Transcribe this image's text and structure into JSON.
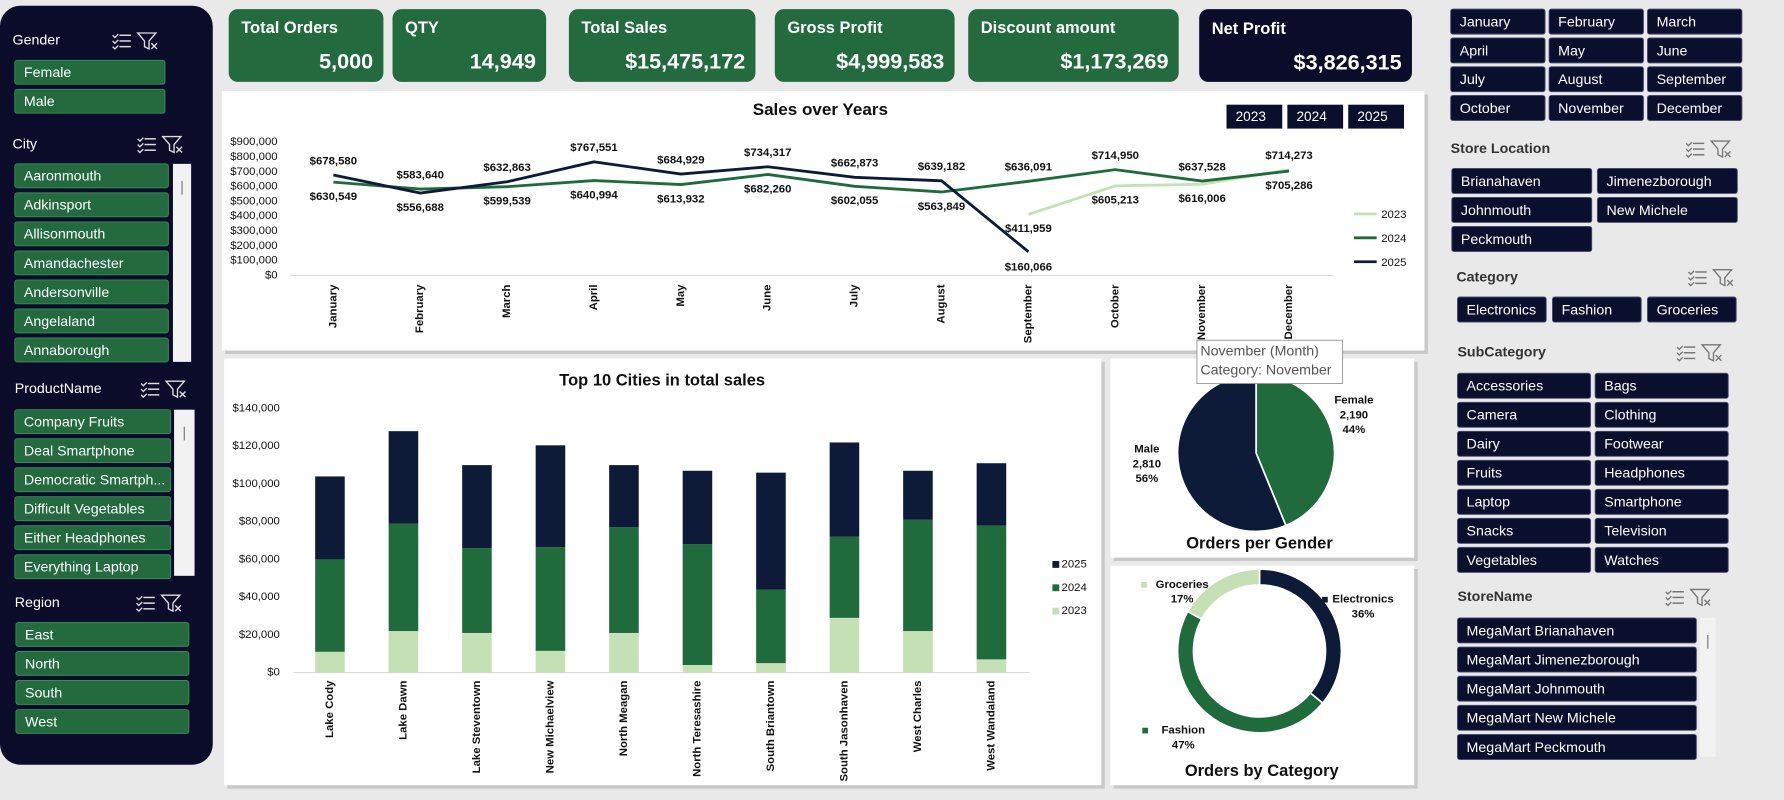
{
  "kpis": [
    {
      "label": "Total Orders",
      "value": "5,000"
    },
    {
      "label": "QTY",
      "value": "14,949"
    },
    {
      "label": "Total Sales",
      "value": "$15,475,172"
    },
    {
      "label": "Gross Profit",
      "value": "$4,999,583"
    },
    {
      "label": "Discount amount",
      "value": "$1,173,269"
    },
    {
      "label": "Net Profit",
      "value": "$3,826,315"
    }
  ],
  "slicers": {
    "gender": {
      "title": "Gender",
      "items": [
        "Female",
        "Male"
      ]
    },
    "city": {
      "title": "City",
      "items": [
        "Aaronmouth",
        "Adkinsport",
        "Allisonmouth",
        "Amandachester",
        "Andersonville",
        "Angelaland",
        "Annaborough"
      ]
    },
    "product": {
      "title": "ProductName",
      "items": [
        "Company Fruits",
        "Deal Smartphone",
        "Democratic Smartph...",
        "Difficult Vegetables",
        "Either Headphones",
        "Everything Laptop"
      ]
    },
    "region": {
      "title": "Region",
      "items": [
        "East",
        "North",
        "South",
        "West"
      ]
    },
    "months": {
      "items": [
        "January",
        "February",
        "March",
        "April",
        "May",
        "June",
        "July",
        "August",
        "September",
        "October",
        "November",
        "December"
      ]
    },
    "store_location": {
      "title": "Store Location",
      "items": [
        "Brianahaven",
        "Jimenezborough",
        "Johnmouth",
        "New Michele",
        "Peckmouth"
      ]
    },
    "category": {
      "title": "Category",
      "items": [
        "Electronics",
        "Fashion",
        "Groceries"
      ]
    },
    "subcategory": {
      "title": "SubCategory",
      "items": [
        "Accessories",
        "Bags",
        "Camera",
        "Clothing",
        "Dairy",
        "Footwear",
        "Fruits",
        "Headphones",
        "Laptop",
        "Smartphone",
        "Snacks",
        "Television",
        "Vegetables",
        "Watches"
      ]
    },
    "store_name": {
      "title": "StoreName",
      "items": [
        "MegaMart Brianahaven",
        "MegaMart Jimenezborough",
        "MegaMart Johnmouth",
        "MegaMart New Michele",
        "MegaMart Peckmouth"
      ]
    }
  },
  "tooltip": {
    "lines": [
      "November (Month)",
      "Category: November"
    ]
  },
  "chart_data": [
    {
      "type": "line",
      "title": "Sales over Years",
      "year_buttons": [
        "2023",
        "2024",
        "2025"
      ],
      "categories": [
        "January",
        "February",
        "March",
        "April",
        "May",
        "June",
        "July",
        "August",
        "September",
        "October",
        "November",
        "December"
      ],
      "series": [
        {
          "name": "2023",
          "color": "#c5e0b4",
          "values": [
            null,
            null,
            null,
            null,
            null,
            null,
            null,
            null,
            411959,
            605213,
            616006,
            714273
          ],
          "value_labels": [
            null,
            null,
            null,
            null,
            null,
            null,
            null,
            null,
            "$411,959",
            "$605,213",
            "$616,006",
            "$714,273"
          ]
        },
        {
          "name": "2024",
          "color": "#1f6b3b",
          "values": [
            630549,
            583640,
            599539,
            640994,
            613932,
            682260,
            602055,
            563849,
            636091,
            714950,
            637528,
            705286
          ],
          "value_labels": [
            "$630,549",
            "$583,640",
            "$599,539",
            "$640,994",
            "$613,932",
            "$682,260",
            "$602,055",
            "$563,849",
            "$636,091",
            "$714,950",
            "$637,528",
            "$705,286"
          ]
        },
        {
          "name": "2025",
          "color": "#0d1b38",
          "values": [
            678580,
            556688,
            632863,
            767551,
            684929,
            734317,
            662873,
            639182,
            160066,
            null,
            null,
            null
          ],
          "value_labels": [
            "$678,580",
            "$556,688",
            "$632,863",
            "$767,551",
            "$684,929",
            "$734,317",
            "$662,873",
            "$639,182",
            "$160,066",
            null,
            null,
            null
          ]
        }
      ],
      "ylim": [
        0,
        900000
      ],
      "yticks": [
        {
          "value": 0,
          "label": "$0"
        },
        {
          "value": 100000,
          "label": "$100,000"
        },
        {
          "value": 200000,
          "label": "$200,000"
        },
        {
          "value": 300000,
          "label": "$300,000"
        },
        {
          "value": 400000,
          "label": "$400,000"
        },
        {
          "value": 500000,
          "label": "$500,000"
        },
        {
          "value": 600000,
          "label": "$600,000"
        },
        {
          "value": 700000,
          "label": "$700,000"
        },
        {
          "value": 800000,
          "label": "$800,000"
        },
        {
          "value": 900000,
          "label": "$900,000"
        }
      ],
      "grid": false,
      "legend": "right"
    },
    {
      "type": "stacked_bar",
      "title": "Top 10 Cities in total sales",
      "categories": [
        "Lake Cody",
        "Lake Dawn",
        "Lake Steventown",
        "New Michaelview",
        "North Meagan",
        "North Teresashire",
        "South Briantown",
        "South Jasonhaven",
        "West Charles",
        "West Wandaland"
      ],
      "series": [
        {
          "name": "2023",
          "color": "#c5e0b4",
          "values": [
            11000,
            22000,
            21000,
            11500,
            21000,
            4000,
            5000,
            29000,
            22000,
            7000
          ]
        },
        {
          "name": "2024",
          "color": "#1f6b3b",
          "values": [
            49000,
            57000,
            45000,
            55000,
            56000,
            64000,
            39000,
            43000,
            59000,
            71000
          ]
        },
        {
          "name": "2025",
          "color": "#0d1b38",
          "values": [
            44000,
            49000,
            44000,
            54000,
            33000,
            39000,
            62000,
            50000,
            26000,
            33000
          ]
        }
      ],
      "ylim": [
        0,
        140000
      ],
      "yticks": [
        {
          "value": 0,
          "label": "$0"
        },
        {
          "value": 20000,
          "label": "$20,000"
        },
        {
          "value": 40000,
          "label": "$40,000"
        },
        {
          "value": 60000,
          "label": "$60,000"
        },
        {
          "value": 80000,
          "label": "$80,000"
        },
        {
          "value": 100000,
          "label": "$100,000"
        },
        {
          "value": 120000,
          "label": "$120,000"
        },
        {
          "value": 140000,
          "label": "$140,000"
        }
      ],
      "grid": false,
      "legend": "right"
    },
    {
      "type": "pie",
      "title": "Orders per Gender",
      "categories": [
        "Female",
        "Male"
      ],
      "values": [
        2190,
        2810
      ],
      "value_labels": [
        "2,190",
        "2,810"
      ],
      "percent_labels": [
        "44%",
        "56%"
      ],
      "colors": [
        "#1f6b3b",
        "#0d1b38"
      ]
    },
    {
      "type": "donut",
      "title": "Orders by Category",
      "categories": [
        "Electronics",
        "Fashion",
        "Groceries"
      ],
      "values": [
        36,
        47,
        17
      ],
      "value_labels": [
        "36%",
        "47%",
        "17%"
      ],
      "colors": [
        "#0d1b38",
        "#1f6b3b",
        "#c5e0b4"
      ]
    }
  ]
}
